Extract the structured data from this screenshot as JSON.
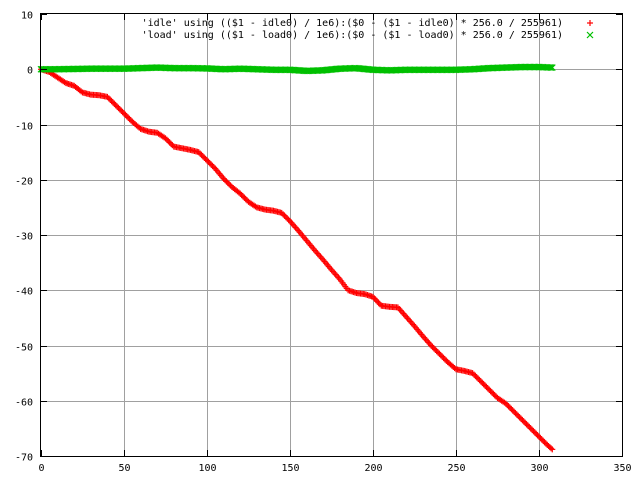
{
  "colors": {
    "background": "#ffffff",
    "frame": "#000000",
    "grid": "#a0a0a0",
    "idle_series": "#ff0000",
    "load_series": "#00c000"
  },
  "chart_data": {
    "type": "scatter",
    "title": "",
    "xlabel": "",
    "ylabel": "",
    "xlim": [
      0,
      350
    ],
    "ylim": [
      -70,
      10
    ],
    "x_ticks": [
      0,
      50,
      100,
      150,
      200,
      250,
      300,
      350
    ],
    "y_ticks": [
      10,
      0,
      -10,
      -20,
      -30,
      -40,
      -50,
      -60,
      -70
    ],
    "grid": true,
    "legend_placement": "top-right",
    "series": [
      {
        "name": "'idle' using (($1 - idle0) / 1e6):($0 - ($1 - idle0) * 256.0 / 255961)",
        "marker": "+",
        "color": "#ff0000",
        "points": [
          [
            0,
            0
          ],
          [
            5,
            -0.5
          ],
          [
            10,
            -1.5
          ],
          [
            15,
            -2.5
          ],
          [
            20,
            -3
          ],
          [
            25,
            -4.2
          ],
          [
            30,
            -4.6
          ],
          [
            35,
            -4.7
          ],
          [
            40,
            -5
          ],
          [
            45,
            -6.5
          ],
          [
            50,
            -8
          ],
          [
            55,
            -9.5
          ],
          [
            60,
            -10.8
          ],
          [
            65,
            -11.3
          ],
          [
            70,
            -11.5
          ],
          [
            75,
            -12.5
          ],
          [
            80,
            -14
          ],
          [
            85,
            -14.3
          ],
          [
            90,
            -14.6
          ],
          [
            95,
            -15
          ],
          [
            100,
            -16.5
          ],
          [
            105,
            -18
          ],
          [
            110,
            -19.8
          ],
          [
            115,
            -21.3
          ],
          [
            120,
            -22.5
          ],
          [
            125,
            -24
          ],
          [
            130,
            -25
          ],
          [
            135,
            -25.4
          ],
          [
            140,
            -25.6
          ],
          [
            145,
            -26
          ],
          [
            150,
            -27.5
          ],
          [
            155,
            -29.2
          ],
          [
            160,
            -31
          ],
          [
            165,
            -32.8
          ],
          [
            170,
            -34.5
          ],
          [
            175,
            -36.3
          ],
          [
            180,
            -38
          ],
          [
            185,
            -40
          ],
          [
            190,
            -40.5
          ],
          [
            195,
            -40.7
          ],
          [
            200,
            -41.2
          ],
          [
            205,
            -42.8
          ],
          [
            210,
            -43
          ],
          [
            215,
            -43.1
          ],
          [
            220,
            -44.8
          ],
          [
            225,
            -46.5
          ],
          [
            230,
            -48.3
          ],
          [
            235,
            -50
          ],
          [
            240,
            -51.5
          ],
          [
            245,
            -53
          ],
          [
            250,
            -54.3
          ],
          [
            255,
            -54.6
          ],
          [
            260,
            -55
          ],
          [
            265,
            -56.5
          ],
          [
            270,
            -58
          ],
          [
            275,
            -59.5
          ],
          [
            280,
            -60.5
          ],
          [
            285,
            -62
          ],
          [
            290,
            -63.5
          ],
          [
            295,
            -65
          ],
          [
            300,
            -66.5
          ],
          [
            305,
            -68
          ],
          [
            308,
            -68.8
          ]
        ]
      },
      {
        "name": "'load' using (($1 - load0) / 1e6):($0 - ($1 - load0) * 256.0 / 255961)",
        "marker": "x",
        "color": "#00c000",
        "points": [
          [
            0,
            0
          ],
          [
            10,
            0
          ],
          [
            20,
            0.05
          ],
          [
            30,
            0.1
          ],
          [
            40,
            0.1
          ],
          [
            50,
            0.1
          ],
          [
            60,
            0.2
          ],
          [
            70,
            0.3
          ],
          [
            80,
            0.2
          ],
          [
            90,
            0.2
          ],
          [
            100,
            0.15
          ],
          [
            110,
            0
          ],
          [
            120,
            0.1
          ],
          [
            130,
            0
          ],
          [
            140,
            -0.1
          ],
          [
            150,
            -0.1
          ],
          [
            160,
            -0.3
          ],
          [
            170,
            -0.2
          ],
          [
            180,
            0.1
          ],
          [
            190,
            0.2
          ],
          [
            200,
            -0.1
          ],
          [
            210,
            -0.2
          ],
          [
            220,
            -0.1
          ],
          [
            230,
            -0.1
          ],
          [
            240,
            -0.1
          ],
          [
            250,
            -0.1
          ],
          [
            260,
            0
          ],
          [
            270,
            0.2
          ],
          [
            280,
            0.3
          ],
          [
            290,
            0.4
          ],
          [
            300,
            0.4
          ],
          [
            308,
            0.3
          ]
        ]
      }
    ]
  }
}
